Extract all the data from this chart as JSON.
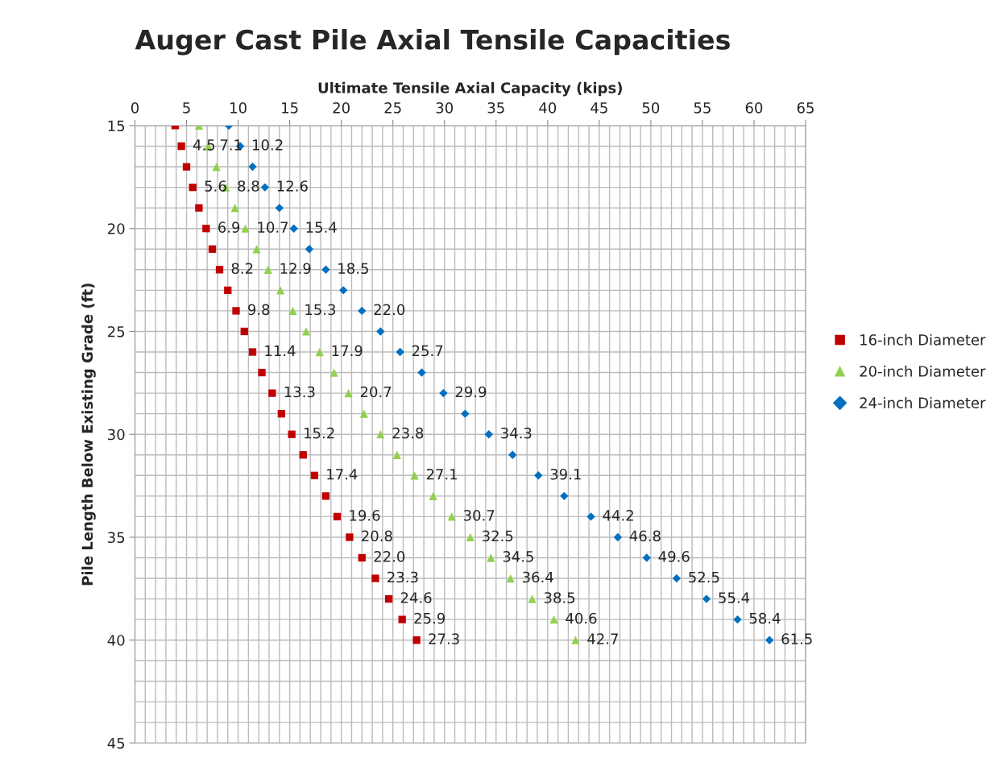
{
  "chart_data": {
    "type": "scatter",
    "title": "Auger Cast Pile Axial Tensile Capacities",
    "xlabel": "Ultimate Tensile Axial Capacity (kips)",
    "ylabel": "Pile Length Below Existing Grade (ft)",
    "xlim": [
      0,
      65
    ],
    "xticks": [
      0,
      5,
      10,
      15,
      20,
      25,
      30,
      35,
      40,
      45,
      50,
      55,
      60,
      65
    ],
    "ylim": [
      45,
      15
    ],
    "yticks": [
      15,
      20,
      25,
      30,
      35,
      40,
      45
    ],
    "grid": true,
    "legend": "right",
    "series": [
      {
        "name": "16-inch Diameter",
        "color": "#c00000",
        "marker": "square",
        "x": [
          3.9,
          4.5,
          5.0,
          5.6,
          6.2,
          6.9,
          7.5,
          8.2,
          9.0,
          9.8,
          10.6,
          11.4,
          12.3,
          13.3,
          14.2,
          15.2,
          16.3,
          17.4,
          18.5,
          19.6,
          20.8,
          22.0,
          23.3,
          24.6,
          25.9,
          27.3
        ],
        "values": [
          15,
          16,
          17,
          18,
          19,
          20,
          21,
          22,
          23,
          24,
          25,
          26,
          27,
          28,
          29,
          30,
          31,
          32,
          33,
          34,
          35,
          36,
          37,
          38,
          39,
          40
        ]
      },
      {
        "name": "20-inch Diameter",
        "color": "#92d050",
        "marker": "triangle",
        "x": [
          6.2,
          7.1,
          7.9,
          8.8,
          9.7,
          10.7,
          11.8,
          12.9,
          14.1,
          15.3,
          16.6,
          17.9,
          19.3,
          20.7,
          22.2,
          23.8,
          25.4,
          27.1,
          28.9,
          30.7,
          32.5,
          34.5,
          36.4,
          38.5,
          40.6,
          42.7
        ],
        "values": [
          15,
          16,
          17,
          18,
          19,
          20,
          21,
          22,
          23,
          24,
          25,
          26,
          27,
          28,
          29,
          30,
          31,
          32,
          33,
          34,
          35,
          36,
          37,
          38,
          39,
          40
        ]
      },
      {
        "name": "24-inch Diameter",
        "color": "#0070c0",
        "marker": "diamond",
        "x": [
          9.1,
          10.2,
          11.4,
          12.6,
          14.0,
          15.4,
          16.9,
          18.5,
          20.2,
          22.0,
          23.8,
          25.7,
          27.8,
          29.9,
          32.0,
          34.3,
          36.6,
          39.1,
          41.6,
          44.2,
          46.8,
          49.6,
          52.5,
          55.4,
          58.4,
          61.5
        ],
        "values": [
          15,
          16,
          17,
          18,
          19,
          20,
          21,
          22,
          23,
          24,
          25,
          26,
          27,
          28,
          29,
          30,
          31,
          32,
          33,
          34,
          35,
          36,
          37,
          38,
          39,
          40
        ]
      }
    ],
    "annotations": [
      {
        "text": "4.5",
        "x": 4.5,
        "y": 16
      },
      {
        "text": "5.6",
        "x": 5.6,
        "y": 18
      },
      {
        "text": "6.9",
        "x": 6.9,
        "y": 20
      },
      {
        "text": "8.2",
        "x": 8.2,
        "y": 22
      },
      {
        "text": "9.8",
        "x": 9.8,
        "y": 24
      },
      {
        "text": "11.4",
        "x": 11.4,
        "y": 26
      },
      {
        "text": "13.3",
        "x": 13.3,
        "y": 28
      },
      {
        "text": "15.2",
        "x": 15.2,
        "y": 30
      },
      {
        "text": "17.4",
        "x": 17.4,
        "y": 32
      },
      {
        "text": "19.6",
        "x": 19.6,
        "y": 34
      },
      {
        "text": "20.8",
        "x": 20.8,
        "y": 35
      },
      {
        "text": "22.0",
        "x": 22.0,
        "y": 36
      },
      {
        "text": "23.3",
        "x": 23.3,
        "y": 37
      },
      {
        "text": "24.6",
        "x": 24.6,
        "y": 38
      },
      {
        "text": "25.9",
        "x": 25.9,
        "y": 39
      },
      {
        "text": "27.3",
        "x": 27.3,
        "y": 40
      },
      {
        "text": "7.1",
        "x": 7.1,
        "y": 16
      },
      {
        "text": "8.8",
        "x": 8.8,
        "y": 18
      },
      {
        "text": "10.7",
        "x": 10.7,
        "y": 20
      },
      {
        "text": "12.9",
        "x": 12.9,
        "y": 22
      },
      {
        "text": "15.3",
        "x": 15.3,
        "y": 24
      },
      {
        "text": "17.9",
        "x": 17.9,
        "y": 26
      },
      {
        "text": "20.7",
        "x": 20.7,
        "y": 28
      },
      {
        "text": "23.8",
        "x": 23.8,
        "y": 30
      },
      {
        "text": "27.1",
        "x": 27.1,
        "y": 32
      },
      {
        "text": "30.7",
        "x": 30.7,
        "y": 34
      },
      {
        "text": "32.5",
        "x": 32.5,
        "y": 35
      },
      {
        "text": "34.5",
        "x": 34.5,
        "y": 36
      },
      {
        "text": "36.4",
        "x": 36.4,
        "y": 37
      },
      {
        "text": "38.5",
        "x": 38.5,
        "y": 38
      },
      {
        "text": "40.6",
        "x": 40.6,
        "y": 39
      },
      {
        "text": "42.7",
        "x": 42.7,
        "y": 40
      },
      {
        "text": "10.2",
        "x": 10.2,
        "y": 16
      },
      {
        "text": "12.6",
        "x": 12.6,
        "y": 18
      },
      {
        "text": "15.4",
        "x": 15.4,
        "y": 20
      },
      {
        "text": "18.5",
        "x": 18.5,
        "y": 22
      },
      {
        "text": "22.0",
        "x": 22.0,
        "y": 24
      },
      {
        "text": "25.7",
        "x": 25.7,
        "y": 26
      },
      {
        "text": "29.9",
        "x": 29.9,
        "y": 28
      },
      {
        "text": "34.3",
        "x": 34.3,
        "y": 30
      },
      {
        "text": "39.1",
        "x": 39.1,
        "y": 32
      },
      {
        "text": "44.2",
        "x": 44.2,
        "y": 34
      },
      {
        "text": "46.8",
        "x": 46.8,
        "y": 35
      },
      {
        "text": "49.6",
        "x": 49.6,
        "y": 36
      },
      {
        "text": "52.5",
        "x": 52.5,
        "y": 37
      },
      {
        "text": "55.4",
        "x": 55.4,
        "y": 38
      },
      {
        "text": "58.4",
        "x": 58.4,
        "y": 39
      },
      {
        "text": "61.5",
        "x": 61.5,
        "y": 40
      }
    ]
  }
}
